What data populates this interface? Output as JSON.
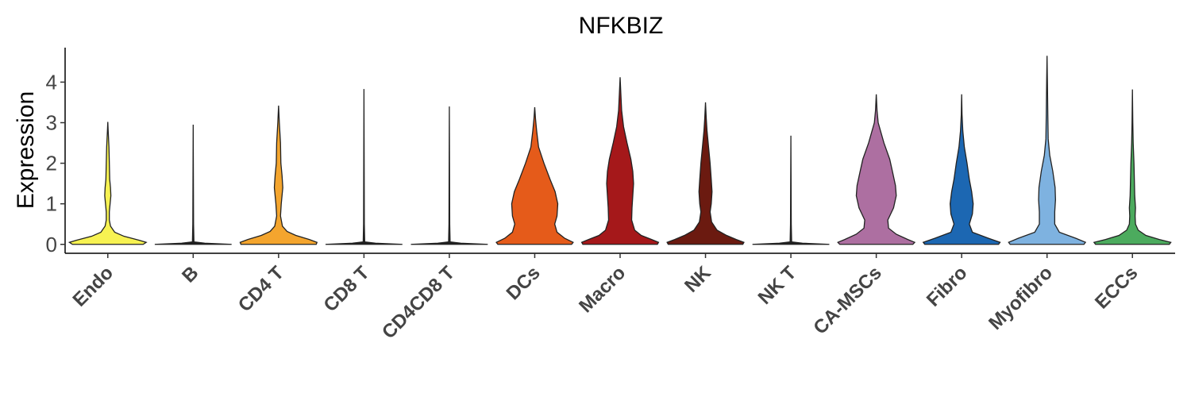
{
  "chart_data": {
    "type": "violin",
    "title": "NFKBIZ",
    "xlabel": "",
    "ylabel": "Expression",
    "ylim": [
      -0.22,
      4.85
    ],
    "yticks": [
      0,
      1,
      2,
      3,
      4
    ],
    "grid": false,
    "legend": "none",
    "categories": [
      "Endo",
      "B",
      "CD4 T",
      "CD8 T",
      "CD4CD8 T",
      "DCs",
      "Macro",
      "NK",
      "NK T",
      "CA-MSCs",
      "Fibro",
      "Myofibro",
      "ECCs"
    ],
    "series": [
      {
        "category": "Endo",
        "max": 3.02,
        "color": "#F7F252",
        "density": [
          [
            0,
            0.92
          ],
          [
            0.05,
            1.0
          ],
          [
            0.1,
            0.82
          ],
          [
            0.2,
            0.42
          ],
          [
            0.3,
            0.18
          ],
          [
            0.45,
            0.07
          ],
          [
            0.6,
            0.04
          ],
          [
            0.8,
            0.04
          ],
          [
            1.0,
            0.06
          ],
          [
            1.2,
            0.08
          ],
          [
            1.4,
            0.07
          ],
          [
            1.6,
            0.05
          ],
          [
            2.0,
            0.04
          ],
          [
            2.4,
            0.03
          ],
          [
            2.8,
            0.01
          ],
          [
            3.02,
            0
          ]
        ]
      },
      {
        "category": "B",
        "max": 2.95,
        "color": "#1f1f1f",
        "density": [
          [
            0,
            1.0
          ],
          [
            0.03,
            0.3
          ],
          [
            0.06,
            0.02
          ],
          [
            0.5,
            0.01
          ],
          [
            2.95,
            0
          ]
        ]
      },
      {
        "category": "CD4 T",
        "max": 3.42,
        "color": "#F4A52E",
        "density": [
          [
            0,
            0.98
          ],
          [
            0.05,
            1.0
          ],
          [
            0.12,
            0.8
          ],
          [
            0.22,
            0.45
          ],
          [
            0.32,
            0.22
          ],
          [
            0.45,
            0.1
          ],
          [
            0.7,
            0.05
          ],
          [
            1.0,
            0.07
          ],
          [
            1.4,
            0.11
          ],
          [
            1.7,
            0.09
          ],
          [
            2.0,
            0.06
          ],
          [
            2.5,
            0.05
          ],
          [
            3.0,
            0.02
          ],
          [
            3.42,
            0
          ]
        ]
      },
      {
        "category": "CD8 T",
        "max": 3.83,
        "color": "#1f1f1f",
        "density": [
          [
            0,
            1.0
          ],
          [
            0.03,
            0.3
          ],
          [
            0.06,
            0.02
          ],
          [
            0.5,
            0.01
          ],
          [
            3.83,
            0
          ]
        ]
      },
      {
        "category": "CD4CD8 T",
        "max": 3.4,
        "color": "#1f1f1f",
        "density": [
          [
            0,
            1.0
          ],
          [
            0.03,
            0.3
          ],
          [
            0.06,
            0.02
          ],
          [
            0.5,
            0.01
          ],
          [
            3.4,
            0
          ]
        ]
      },
      {
        "category": "DCs",
        "max": 3.38,
        "color": "#E55B1A",
        "density": [
          [
            0,
            0.96
          ],
          [
            0.05,
            1.0
          ],
          [
            0.15,
            0.78
          ],
          [
            0.3,
            0.58
          ],
          [
            0.5,
            0.52
          ],
          [
            0.7,
            0.58
          ],
          [
            1.0,
            0.6
          ],
          [
            1.3,
            0.53
          ],
          [
            1.6,
            0.4
          ],
          [
            2.0,
            0.24
          ],
          [
            2.4,
            0.1
          ],
          [
            2.8,
            0.05
          ],
          [
            3.1,
            0.02
          ],
          [
            3.38,
            0
          ]
        ]
      },
      {
        "category": "Macro",
        "max": 4.12,
        "color": "#A5181A",
        "density": [
          [
            0,
            0.97
          ],
          [
            0.05,
            1.0
          ],
          [
            0.12,
            0.82
          ],
          [
            0.22,
            0.55
          ],
          [
            0.35,
            0.38
          ],
          [
            0.6,
            0.3
          ],
          [
            0.9,
            0.31
          ],
          [
            1.2,
            0.33
          ],
          [
            1.5,
            0.35
          ],
          [
            1.8,
            0.33
          ],
          [
            2.1,
            0.28
          ],
          [
            2.5,
            0.18
          ],
          [
            2.9,
            0.09
          ],
          [
            3.3,
            0.04
          ],
          [
            3.7,
            0.02
          ],
          [
            4.12,
            0
          ]
        ]
      },
      {
        "category": "NK",
        "max": 3.5,
        "color": "#6B1A10",
        "density": [
          [
            0,
            0.97
          ],
          [
            0.05,
            1.0
          ],
          [
            0.12,
            0.8
          ],
          [
            0.22,
            0.55
          ],
          [
            0.35,
            0.3
          ],
          [
            0.55,
            0.16
          ],
          [
            0.8,
            0.12
          ],
          [
            1.0,
            0.15
          ],
          [
            1.3,
            0.17
          ],
          [
            1.6,
            0.15
          ],
          [
            2.0,
            0.12
          ],
          [
            2.4,
            0.08
          ],
          [
            2.8,
            0.04
          ],
          [
            3.1,
            0.02
          ],
          [
            3.5,
            0
          ]
        ]
      },
      {
        "category": "NK T",
        "max": 2.68,
        "color": "#1f1f1f",
        "density": [
          [
            0,
            1.0
          ],
          [
            0.03,
            0.3
          ],
          [
            0.06,
            0.02
          ],
          [
            0.5,
            0.01
          ],
          [
            2.68,
            0
          ]
        ]
      },
      {
        "category": "CA-MSCs",
        "max": 3.7,
        "color": "#AD6FA1",
        "density": [
          [
            0,
            0.95
          ],
          [
            0.05,
            1.0
          ],
          [
            0.12,
            0.82
          ],
          [
            0.25,
            0.52
          ],
          [
            0.4,
            0.32
          ],
          [
            0.6,
            0.3
          ],
          [
            0.9,
            0.45
          ],
          [
            1.2,
            0.52
          ],
          [
            1.45,
            0.5
          ],
          [
            1.8,
            0.42
          ],
          [
            2.1,
            0.35
          ],
          [
            2.5,
            0.2
          ],
          [
            3.0,
            0.05
          ],
          [
            3.3,
            0.02
          ],
          [
            3.7,
            0
          ]
        ]
      },
      {
        "category": "Fibro",
        "max": 3.7,
        "color": "#1C67B2",
        "density": [
          [
            0,
            0.96
          ],
          [
            0.05,
            1.0
          ],
          [
            0.15,
            0.7
          ],
          [
            0.3,
            0.28
          ],
          [
            0.5,
            0.2
          ],
          [
            0.75,
            0.28
          ],
          [
            1.0,
            0.3
          ],
          [
            1.3,
            0.26
          ],
          [
            1.6,
            0.2
          ],
          [
            2.0,
            0.14
          ],
          [
            2.4,
            0.07
          ],
          [
            2.8,
            0.03
          ],
          [
            3.2,
            0.01
          ],
          [
            3.7,
            0
          ]
        ]
      },
      {
        "category": "Myofibro",
        "max": 4.65,
        "color": "#7EB2E0",
        "density": [
          [
            0,
            0.96
          ],
          [
            0.05,
            1.0
          ],
          [
            0.15,
            0.75
          ],
          [
            0.3,
            0.32
          ],
          [
            0.5,
            0.2
          ],
          [
            0.8,
            0.2
          ],
          [
            1.1,
            0.22
          ],
          [
            1.4,
            0.21
          ],
          [
            1.8,
            0.15
          ],
          [
            2.2,
            0.07
          ],
          [
            2.6,
            0.03
          ],
          [
            3.2,
            0.02
          ],
          [
            4.0,
            0.01
          ],
          [
            4.65,
            0
          ]
        ]
      },
      {
        "category": "ECCs",
        "max": 3.82,
        "color": "#4CAB5E",
        "density": [
          [
            0,
            0.96
          ],
          [
            0.05,
            1.0
          ],
          [
            0.12,
            0.7
          ],
          [
            0.22,
            0.35
          ],
          [
            0.35,
            0.15
          ],
          [
            0.5,
            0.08
          ],
          [
            0.7,
            0.07
          ],
          [
            0.9,
            0.08
          ],
          [
            1.2,
            0.06
          ],
          [
            1.6,
            0.05
          ],
          [
            2.0,
            0.04
          ],
          [
            2.5,
            0.02
          ],
          [
            3.0,
            0.01
          ],
          [
            3.82,
            0
          ]
        ]
      }
    ]
  }
}
